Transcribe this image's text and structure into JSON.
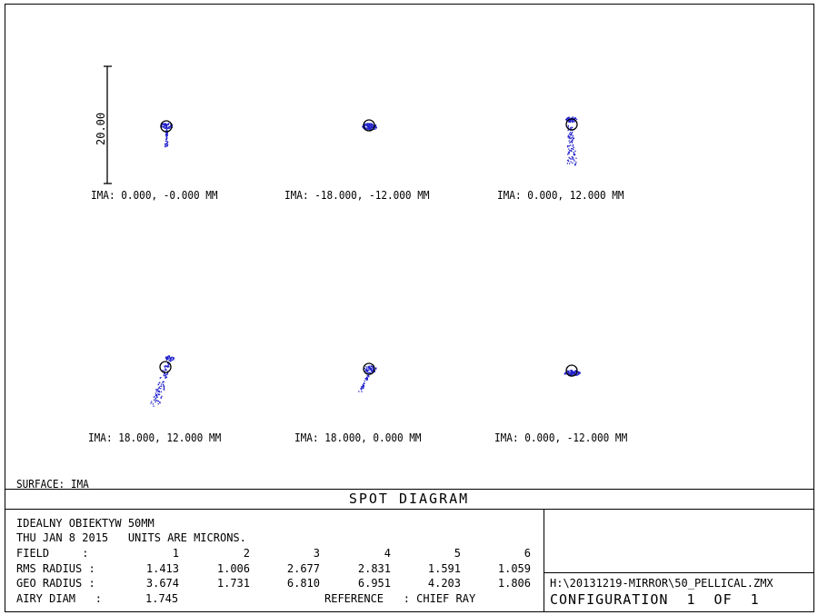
{
  "chart_data": {
    "type": "scatter",
    "title": "SPOT DIAGRAM",
    "scale_bar_label": "20.00",
    "surface_label": "SURFACE: IMA",
    "spot_color": "#2222cc",
    "fields": [
      {
        "label": "IMA: 0.000, -0.000 MM",
        "shape": "tail-down"
      },
      {
        "label": "IMA: -18.000, -12.000 MM",
        "shape": "compact"
      },
      {
        "label": "IMA: 0.000, 12.000 MM",
        "shape": "long-tail-down"
      },
      {
        "label": "IMA: 18.000, 12.000 MM",
        "shape": "tail-down-left"
      },
      {
        "label": "IMA: 18.000, 0.000 MM",
        "shape": "tail-down-left-short"
      },
      {
        "label": "IMA: 0.000, -12.000 MM",
        "shape": "compact-flat"
      }
    ]
  },
  "info": {
    "lens_name": "IDEALNY OBIEKTYW 50MM",
    "date_line": "THU JAN 8 2015   UNITS ARE MICRONS.",
    "field_label": "FIELD     :",
    "field_numbers": [
      "1",
      "2",
      "3",
      "4",
      "5",
      "6"
    ],
    "rms_label": "RMS RADIUS :",
    "rms_values": [
      "1.413",
      "1.006",
      "2.677",
      "2.831",
      "1.591",
      "1.059"
    ],
    "geo_label": "GEO RADIUS :",
    "geo_values": [
      "3.674",
      "1.731",
      "6.810",
      "6.951",
      "4.203",
      "1.806"
    ],
    "airy_label": "AIRY DIAM   :",
    "airy_value": "1.745",
    "reference": "REFERENCE   : CHIEF RAY",
    "file_path": "H:\\20131219-MIRROR\\50_PELLICAL.ZMX",
    "configuration": "CONFIGURATION  1  OF  1"
  }
}
